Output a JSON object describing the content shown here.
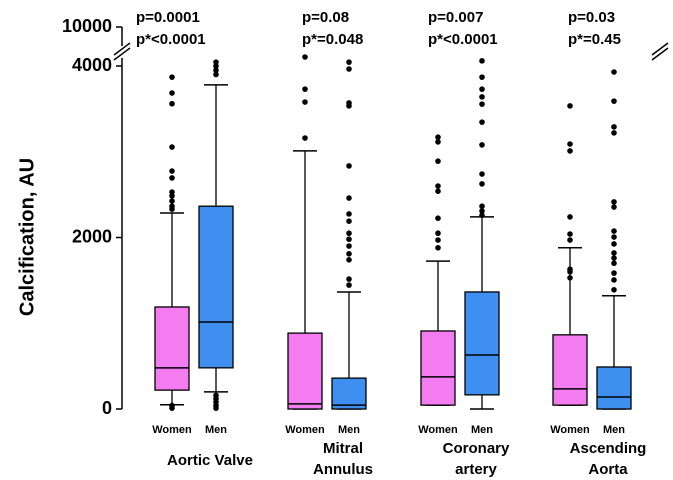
{
  "chart_data": {
    "type": "box",
    "y_label": "Calcification, AU",
    "categories": [
      "Aortic Valve",
      "Mitral\nAnnulus",
      "Coronary\nartery",
      "Ascending\nAorta"
    ],
    "p_values": [
      [
        "p=0.0001",
        "p*<0.0001"
      ],
      [
        "p=0.08",
        "p*=0.048"
      ],
      [
        "p=0.007",
        "p*<0.0001"
      ],
      [
        "p=0.03",
        "p*=0.45"
      ]
    ],
    "ylim": [
      0,
      4000
    ],
    "yticks": [
      0,
      2000,
      4000
    ],
    "break_tick": 10000,
    "series": [
      {
        "name": "Women",
        "color": "#f27cf0",
        "values": [
          {
            "min": 50,
            "q1": 220,
            "median": 480,
            "q3": 1190,
            "max": 2285,
            "outliers": [
              3870,
              3685,
              3560,
              3055,
              2775,
              2695,
              2530,
              2485,
              2425,
              2365,
              2330,
              40,
              10
            ]
          },
          {
            "min": 0,
            "q1": 0,
            "median": 60,
            "q3": 885,
            "max": 3010,
            "outliers": [
              4105,
              3730,
              3580,
              3160
            ]
          },
          {
            "min": 45,
            "q1": 45,
            "median": 375,
            "q3": 910,
            "max": 1725,
            "outliers": [
              3170,
              3115,
              2890,
              2600,
              2540,
              2225,
              2050,
              1970,
              1880
            ]
          },
          {
            "min": 45,
            "q1": 45,
            "median": 235,
            "q3": 865,
            "max": 1880,
            "outliers": [
              3535,
              3090,
              3010,
              2240,
              2040,
              1970,
              1630,
              1600,
              1530
            ]
          }
        ]
      },
      {
        "name": "Men",
        "color": "#3f8ff0",
        "values": [
          {
            "min": 200,
            "q1": 480,
            "median": 1015,
            "q3": 2365,
            "max": 3780,
            "outliers": [
              4045,
              4000,
              3950,
              3900,
              160,
              120,
              80,
              40,
              10
            ]
          },
          {
            "min": 0,
            "q1": 0,
            "median": 45,
            "q3": 360,
            "max": 1365,
            "outliers": [
              4045,
              3965,
              3570,
              3535,
              2835,
              2460,
              2275,
              2190,
              2050,
              1980,
              1900,
              1810,
              1740,
              1515,
              1445
            ]
          },
          {
            "min": 0,
            "q1": 165,
            "median": 630,
            "q3": 1365,
            "max": 2240,
            "outliers": [
              4060,
              3870,
              3730,
              3640,
              3555,
              3345,
              3080,
              2740,
              2625,
              2365,
              2310,
              2260
            ]
          },
          {
            "min": 0,
            "q1": 0,
            "median": 140,
            "q3": 490,
            "max": 1320,
            "outliers": [
              3930,
              3590,
              3290,
              3220,
              2415,
              2355,
              2075,
              2005,
              1925,
              1820,
              1760,
              1700,
              1585,
              1505,
              1390
            ]
          }
        ]
      }
    ]
  }
}
